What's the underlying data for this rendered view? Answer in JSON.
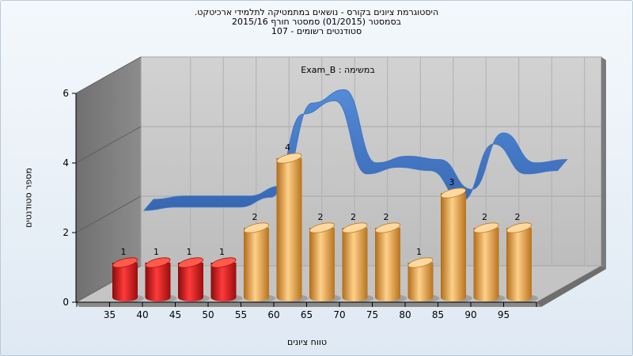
{
  "chart_data": {
    "type": "bar",
    "title_lines": [
      "היסטוגרמת ציונים בקורס - נושאים במתמטיקה לתלמידי ארכיטקט.",
      "בסמסטר  (01/2015)  סמסטר חורף 2015/16",
      "סטודנטים רשומים - 107"
    ],
    "annotation": "במשימה : Exam_B",
    "xlabel": "טווח ציונים",
    "ylabel": "מספר סטודנטים",
    "categories": [
      "35",
      "40",
      "45",
      "50",
      "55",
      "60",
      "65",
      "70",
      "75",
      "80",
      "85",
      "90",
      "95"
    ],
    "values": [
      1,
      1,
      1,
      1,
      2,
      4,
      2,
      2,
      2,
      1,
      3,
      2,
      2
    ],
    "value_labels": [
      "1",
      "1",
      "1",
      "1",
      "2",
      "4",
      "2",
      "2",
      "2",
      "1",
      "3",
      "2",
      "2"
    ],
    "bar_colors": [
      "#e01e1e",
      "#e01e1e",
      "#e01e1e",
      "#e01e1e",
      "#e8a13c",
      "#e8a13c",
      "#e8a13c",
      "#e8a13c",
      "#e8a13c",
      "#e8a13c",
      "#e8a13c",
      "#e8a13c",
      "#e8a13c"
    ],
    "y_ticks": [
      "0",
      "2",
      "4",
      "6"
    ],
    "ylim": [
      0,
      6
    ],
    "trend_series": {
      "x": [
        1,
        2,
        3,
        4,
        5,
        6,
        7,
        8,
        9,
        10,
        11,
        12,
        13,
        14
      ],
      "values": [
        1.5,
        1.6,
        1.6,
        1.6,
        1.9,
        4.4,
        4.8,
        2.6,
        2.8,
        2.7,
        1.8,
        3.5,
        2.6,
        2.7
      ]
    },
    "trend_color": "#3a72c4",
    "grid": true,
    "legend": "none"
  }
}
